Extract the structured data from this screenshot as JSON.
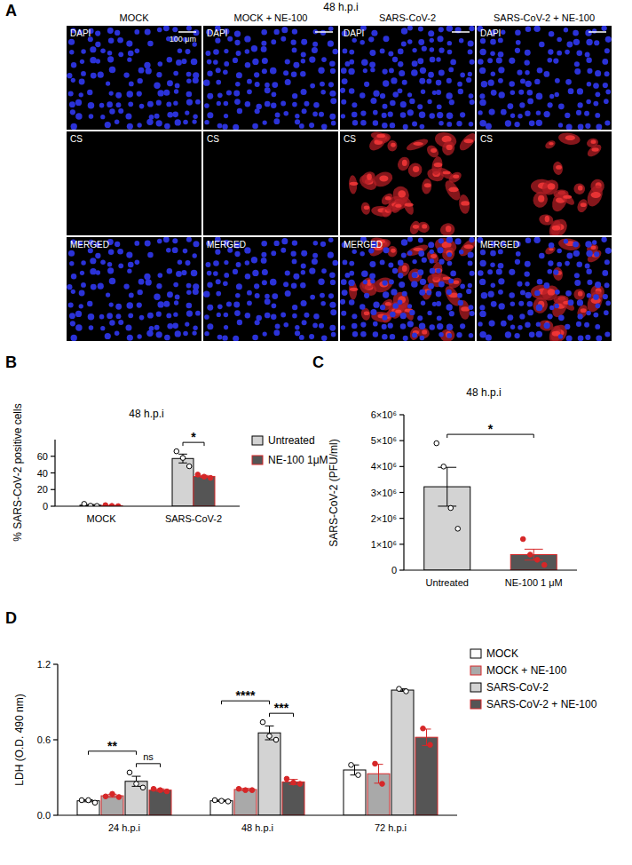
{
  "figure": {
    "panel_labels": [
      "A",
      "B",
      "C",
      "D"
    ],
    "microscopy": {
      "title": "48 h.p.i",
      "columns": [
        "MOCK",
        "MOCK + NE-100",
        "SARS-CoV-2",
        "SARS-CoV-2 + NE-100"
      ],
      "rows": [
        "DAPI",
        "CS",
        "MERGED"
      ],
      "scale_bar": "100 μm"
    }
  },
  "chart_data": [
    {
      "type": "bar",
      "title": "48 h.p.i",
      "y_label": "% SARS-CoV-2 positive cells",
      "categories": [
        "MOCK",
        "SARS-CoV-2"
      ],
      "series": [
        {
          "name": "Untreated",
          "color": "#d3d3d3",
          "marker": "open-circle",
          "values": [
            1.2,
            57.3
          ],
          "errors": [
            0.8,
            5.3
          ],
          "points": [
            [
              2.8,
              0.5,
              0.3
            ],
            [
              66,
              58,
              48
            ]
          ]
        },
        {
          "name": "NE-100 1μM",
          "color": "#555555",
          "marker": "filled-circle",
          "values": [
            0.6,
            35.8
          ],
          "errors": [
            0.4,
            1.2
          ],
          "points": [
            [
              1.3,
              0.4,
              0.1
            ],
            [
              38,
              35.5,
              34
            ]
          ]
        }
      ],
      "ylim": [
        0,
        80
      ],
      "yticks": [
        0,
        20,
        40,
        60
      ],
      "legend": "right",
      "annotations": [
        {
          "text": "*",
          "category": "SARS-CoV-2",
          "between": [
            "Untreated",
            "NE-100 1μM"
          ]
        }
      ]
    },
    {
      "type": "bar",
      "title": "48 h.p.i",
      "y_label": "SARS-CoV-2 (PFU/ml)",
      "categories": [
        "Untreated",
        "NE-100 1 μM"
      ],
      "values": [
        3220000,
        600000
      ],
      "errors": [
        750000,
        210000
      ],
      "points": [
        [
          4900000,
          4000000,
          2400000,
          1600000
        ],
        [
          1200000,
          600000,
          400000,
          200000
        ]
      ],
      "colors": [
        "#d3d3d3",
        "#555555"
      ],
      "ylim": [
        0,
        6000000
      ],
      "yticks": [
        0,
        {
          "value": 1000000,
          "label": "1×10⁶"
        },
        {
          "value": 2000000,
          "label": "2×10⁶"
        },
        {
          "value": 3000000,
          "label": "3×10⁶"
        },
        {
          "value": 4000000,
          "label": "4×10⁶"
        },
        {
          "value": 5000000,
          "label": "5×10⁶"
        },
        {
          "value": 6000000,
          "label": "6×10⁶"
        }
      ],
      "annotations": [
        {
          "text": "*",
          "between": [
            "Untreated",
            "NE-100 1 μM"
          ]
        }
      ]
    },
    {
      "type": "bar",
      "y_label": "LDH (O.D. 490 nm)",
      "categories": [
        "24 h.p.i",
        "48 h.p.i",
        "72 h.p.i"
      ],
      "series": [
        {
          "name": "MOCK",
          "color": "#ffffff",
          "marker": "open-circle",
          "values": [
            0.115,
            0.115,
            0.36
          ],
          "errors": [
            0.008,
            0.006,
            0.04
          ],
          "points": [
            [
              0.12,
              0.12,
              0.1
            ],
            [
              0.12,
              0.115,
              0.11
            ],
            [
              0.4,
              0.32
            ]
          ]
        },
        {
          "name": "MOCK + NE-100",
          "color": "#a9a9a9",
          "marker": "filled-circle",
          "values": [
            0.155,
            0.205,
            0.33
          ],
          "errors": [
            0.012,
            0.008,
            0.075
          ],
          "points": [
            [
              0.15,
              0.17,
              0.145
            ],
            [
              0.21,
              0.2,
              0.2
            ],
            [
              0.41,
              0.25
            ]
          ]
        },
        {
          "name": "SARS-CoV-2",
          "color": "#d3d3d3",
          "marker": "open-circle",
          "values": [
            0.27,
            0.655,
            0.995
          ],
          "errors": [
            0.04,
            0.055,
            0.01
          ],
          "points": [
            [
              0.34,
              0.25,
              0.22
            ],
            [
              0.74,
              0.63,
              0.6
            ],
            [
              1.005,
              0.985
            ]
          ]
        },
        {
          "name": "SARS-CoV-2 + NE-100",
          "color": "#555555",
          "marker": "filled-circle",
          "values": [
            0.2,
            0.265,
            0.62
          ],
          "errors": [
            0.01,
            0.02,
            0.065
          ],
          "points": [
            [
              0.21,
              0.2,
              0.19
            ],
            [
              0.29,
              0.26,
              0.25
            ],
            [
              0.69,
              0.56
            ]
          ]
        }
      ],
      "ylim": [
        0,
        1.2
      ],
      "yticks": [
        {
          "value": 0,
          "label": "0.0"
        },
        0.6,
        1.2
      ],
      "legend": "right",
      "annotations": [
        {
          "text": "**",
          "category": "24 h.p.i",
          "between": [
            "MOCK",
            "SARS-CoV-2"
          ]
        },
        {
          "text": "ns",
          "category": "24 h.p.i",
          "between": [
            "SARS-CoV-2",
            "SARS-CoV-2 + NE-100"
          ]
        },
        {
          "text": "****",
          "category": "48 h.p.i",
          "between": [
            "MOCK",
            "SARS-CoV-2"
          ]
        },
        {
          "text": "***",
          "category": "48 h.p.i",
          "between": [
            "SARS-CoV-2",
            "SARS-CoV-2 + NE-100"
          ]
        }
      ]
    }
  ]
}
